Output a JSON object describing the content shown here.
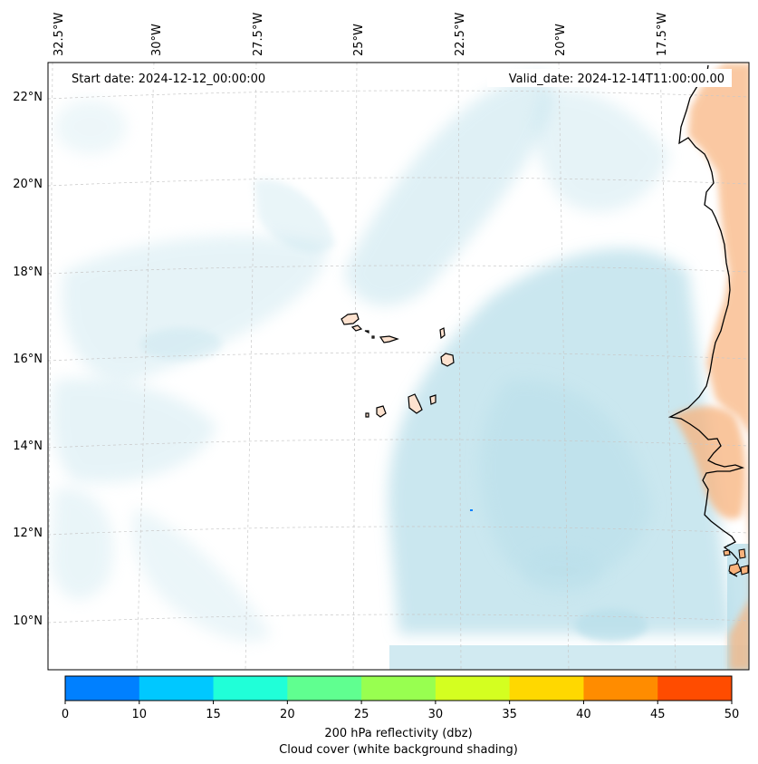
{
  "annotations": {
    "start_date": "Start date: 2024-12-12_00:00:00",
    "valid_date": "Valid_date: 2024-12-14T11:00:00.00"
  },
  "longitude_labels": [
    "32.5°W",
    "30°W",
    "27.5°W",
    "25°W",
    "22.5°W",
    "20°W",
    "17.5°W"
  ],
  "latitude_labels": [
    "22°N",
    "20°N",
    "18°N",
    "16°N",
    "14°N",
    "12°N",
    "10°N"
  ],
  "colorbar": {
    "ticks": [
      "0",
      "10",
      "15",
      "20",
      "25",
      "30",
      "35",
      "40",
      "45",
      "50"
    ],
    "colors": [
      "#0080ff",
      "#00c8ff",
      "#20ffd8",
      "#60ff90",
      "#98ff50",
      "#d4ff20",
      "#ffd800",
      "#ff8c00",
      "#ff4c00"
    ],
    "label_line1": "200 hPa reflectivity (dbz)",
    "label_line2": "Cloud cover (white background shading)"
  },
  "colors": {
    "cloud": "#b9dfea",
    "land_shade": "#f8b27c",
    "island_fill": "#fde2cf",
    "coastline": "#000000",
    "gridline": "#c8c8c8"
  }
}
